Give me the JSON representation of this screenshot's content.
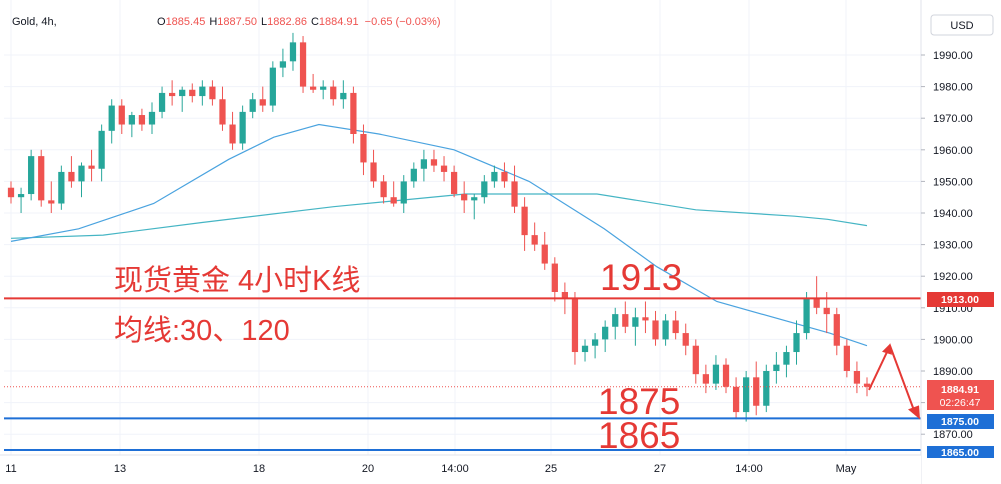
{
  "header": {
    "symbol": "Gold, 4h,",
    "o_label": "O",
    "o_value": "1885.45",
    "h_label": "H",
    "h_value": "1887.50",
    "l_label": "L",
    "l_value": "1882.86",
    "c_label": "C",
    "c_value": "1884.91",
    "change": "−0.65 (−0.03%)"
  },
  "currency": "USD",
  "annotations": {
    "title": "现货黄金 4小时K线",
    "ma_text": "均线:30、120",
    "level_1913": "1913",
    "level_1875": "1875",
    "level_1865": "1865"
  },
  "price_tags": {
    "resistance": "1913.00",
    "current": "1884.91",
    "countdown": "02:26:47",
    "support_1": "1875.00",
    "support_2": "1865.00"
  },
  "colors": {
    "up": "#26a69a",
    "down": "#ef5350",
    "ma30": "#4aa3df",
    "ma120": "#45b5c4",
    "resistance_line": "#e53935",
    "support_line": "#1e6fd6",
    "annotation_text": "#e53935",
    "arrow": "#e53935"
  },
  "chart_data": {
    "type": "candlestick",
    "ylim": [
      1862,
      1997
    ],
    "y_ticks": [
      1870,
      1880,
      1890,
      1900,
      1910,
      1920,
      1930,
      1940,
      1950,
      1960,
      1970,
      1980,
      1990
    ],
    "x_tick_labels": [
      "11",
      "13",
      "18",
      "20",
      "14:00",
      "25",
      "27",
      "14:00",
      "May"
    ],
    "horizontal_levels": [
      1913,
      1875,
      1865
    ],
    "candles": [
      [
        1948,
        1950,
        1943,
        1945
      ],
      [
        1945,
        1948,
        1940,
        1946
      ],
      [
        1946,
        1960,
        1944,
        1958
      ],
      [
        1958,
        1960,
        1942,
        1944
      ],
      [
        1944,
        1950,
        1940,
        1943
      ],
      [
        1943,
        1955,
        1941,
        1953
      ],
      [
        1953,
        1958,
        1948,
        1950
      ],
      [
        1950,
        1956,
        1945,
        1955
      ],
      [
        1955,
        1960,
        1950,
        1954
      ],
      [
        1954,
        1968,
        1950,
        1966
      ],
      [
        1966,
        1976,
        1962,
        1974
      ],
      [
        1974,
        1976,
        1965,
        1968
      ],
      [
        1968,
        1972,
        1964,
        1971
      ],
      [
        1971,
        1973,
        1966,
        1968
      ],
      [
        1968,
        1975,
        1965,
        1972
      ],
      [
        1972,
        1980,
        1970,
        1978
      ],
      [
        1978,
        1982,
        1974,
        1977
      ],
      [
        1977,
        1980,
        1972,
        1979
      ],
      [
        1979,
        1981,
        1975,
        1977
      ],
      [
        1977,
        1982,
        1974,
        1980
      ],
      [
        1980,
        1982,
        1974,
        1976
      ],
      [
        1976,
        1980,
        1966,
        1968
      ],
      [
        1968,
        1972,
        1960,
        1962
      ],
      [
        1962,
        1974,
        1960,
        1972
      ],
      [
        1972,
        1978,
        1970,
        1976
      ],
      [
        1976,
        1980,
        1972,
        1974
      ],
      [
        1974,
        1988,
        1972,
        1986
      ],
      [
        1986,
        1992,
        1983,
        1988
      ],
      [
        1988,
        1997,
        1985,
        1994
      ],
      [
        1994,
        1996,
        1978,
        1980
      ],
      [
        1980,
        1984,
        1978,
        1979
      ],
      [
        1979,
        1982,
        1976,
        1980
      ],
      [
        1980,
        1982,
        1974,
        1976
      ],
      [
        1976,
        1982,
        1973,
        1978
      ],
      [
        1978,
        1980,
        1962,
        1965
      ],
      [
        1965,
        1968,
        1952,
        1956
      ],
      [
        1956,
        1960,
        1948,
        1950
      ],
      [
        1950,
        1952,
        1943,
        1945
      ],
      [
        1945,
        1950,
        1942,
        1943
      ],
      [
        1943,
        1952,
        1940,
        1950
      ],
      [
        1950,
        1956,
        1948,
        1954
      ],
      [
        1954,
        1960,
        1950,
        1957
      ],
      [
        1957,
        1960,
        1953,
        1955
      ],
      [
        1955,
        1958,
        1950,
        1953
      ],
      [
        1953,
        1955,
        1945,
        1946
      ],
      [
        1946,
        1950,
        1940,
        1944
      ],
      [
        1944,
        1946,
        1938,
        1945
      ],
      [
        1945,
        1952,
        1943,
        1950
      ],
      [
        1950,
        1955,
        1948,
        1953
      ],
      [
        1953,
        1956,
        1948,
        1950
      ],
      [
        1950,
        1955,
        1940,
        1942
      ],
      [
        1942,
        1945,
        1928,
        1933
      ],
      [
        1933,
        1937,
        1928,
        1930
      ],
      [
        1930,
        1934,
        1922,
        1924
      ],
      [
        1924,
        1926,
        1912,
        1915
      ],
      [
        1915,
        1918,
        1908,
        1913
      ],
      [
        1913,
        1915,
        1892,
        1896
      ],
      [
        1896,
        1900,
        1893,
        1898
      ],
      [
        1898,
        1902,
        1894,
        1900
      ],
      [
        1900,
        1906,
        1896,
        1904
      ],
      [
        1904,
        1910,
        1900,
        1908
      ],
      [
        1908,
        1912,
        1902,
        1904
      ],
      [
        1904,
        1910,
        1898,
        1907
      ],
      [
        1907,
        1912,
        1902,
        1906
      ],
      [
        1906,
        1909,
        1898,
        1900
      ],
      [
        1900,
        1908,
        1898,
        1906
      ],
      [
        1906,
        1909,
        1900,
        1902
      ],
      [
        1902,
        1905,
        1895,
        1898
      ],
      [
        1898,
        1900,
        1886,
        1889
      ],
      [
        1889,
        1892,
        1883,
        1886
      ],
      [
        1886,
        1895,
        1884,
        1892
      ],
      [
        1892,
        1894,
        1883,
        1885
      ],
      [
        1885,
        1888,
        1875,
        1877
      ],
      [
        1877,
        1890,
        1874,
        1888
      ],
      [
        1888,
        1893,
        1876,
        1879
      ],
      [
        1879,
        1892,
        1877,
        1890
      ],
      [
        1890,
        1896,
        1886,
        1892
      ],
      [
        1892,
        1898,
        1888,
        1896
      ],
      [
        1896,
        1906,
        1892,
        1902
      ],
      [
        1902,
        1915,
        1900,
        1913
      ],
      [
        1913,
        1920,
        1908,
        1910
      ],
      [
        1910,
        1915,
        1902,
        1908
      ],
      [
        1908,
        1910,
        1895,
        1898
      ],
      [
        1898,
        1900,
        1888,
        1890
      ],
      [
        1890,
        1893,
        1883,
        1886
      ],
      [
        1886,
        1888,
        1882,
        1885
      ]
    ],
    "ma30": [
      [
        1,
        1931
      ],
      [
        10,
        1935
      ],
      [
        20,
        1943
      ],
      [
        30,
        1957
      ],
      [
        36,
        1964
      ],
      [
        42,
        1968
      ],
      [
        50,
        1965
      ],
      [
        60,
        1960
      ],
      [
        70,
        1950
      ],
      [
        80,
        1935
      ],
      [
        87,
        1923
      ],
      [
        95,
        1912
      ],
      [
        110,
        1902
      ],
      [
        115,
        1898
      ]
    ],
    "ma120": [
      [
        1,
        1932
      ],
      [
        15,
        1933
      ],
      [
        30,
        1937
      ],
      [
        50,
        1942
      ],
      [
        70,
        1946
      ],
      [
        90,
        1946
      ],
      [
        105,
        1941
      ],
      [
        120,
        1939
      ],
      [
        125,
        1938
      ],
      [
        131,
        1936
      ]
    ]
  }
}
